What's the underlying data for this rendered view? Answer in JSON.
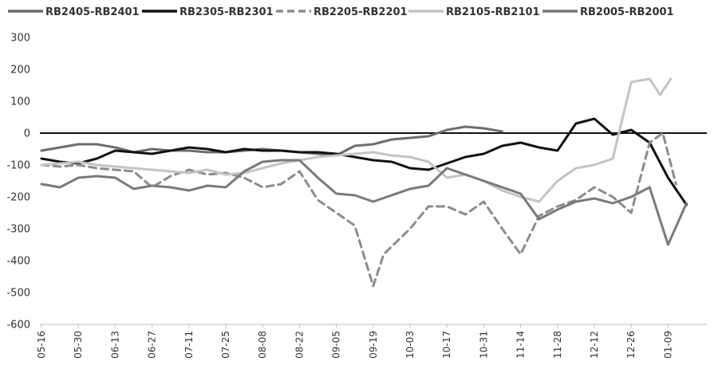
{
  "chart_data": {
    "type": "line",
    "title": "",
    "xlabel": "",
    "ylabel": "",
    "ylim": [
      -600,
      300
    ],
    "y_ticks": [
      300,
      200,
      100,
      0,
      -100,
      -200,
      -300,
      -400,
      -500,
      -600
    ],
    "x_tick_labels": [
      "05-16",
      "05-30",
      "06-13",
      "06-27",
      "07-11",
      "07-25",
      "08-08",
      "08-22",
      "09-05",
      "09-19",
      "10-03",
      "10-17",
      "10-31",
      "11-14",
      "11-28",
      "12-12",
      "12-26",
      "01-09"
    ],
    "grid": false,
    "zero_line": true,
    "legend_position": "top",
    "series": [
      {
        "name": "RB2405-RB2401",
        "color": "#6d6d6d",
        "style": "solid",
        "x": [
          "05-16",
          "05-23",
          "05-30",
          "06-06",
          "06-13",
          "06-20",
          "06-27",
          "07-04",
          "07-11",
          "07-18",
          "07-25",
          "08-01",
          "08-08",
          "08-15",
          "08-22",
          "08-29",
          "09-05",
          "09-12",
          "09-19",
          "09-26",
          "10-03",
          "10-10",
          "10-17",
          "10-24",
          "10-31",
          "11-07"
        ],
        "values": [
          -55,
          -45,
          -35,
          -35,
          -45,
          -60,
          -50,
          -55,
          -55,
          -60,
          -60,
          -55,
          -50,
          -55,
          -60,
          -65,
          -70,
          -40,
          -35,
          -20,
          -15,
          -10,
          10,
          20,
          15,
          5
        ]
      },
      {
        "name": "RB2305-RB2301",
        "color": "#111111",
        "style": "solid",
        "x": [
          "05-16",
          "05-23",
          "05-30",
          "06-06",
          "06-13",
          "06-20",
          "06-27",
          "07-04",
          "07-11",
          "07-18",
          "07-25",
          "08-01",
          "08-08",
          "08-15",
          "08-22",
          "08-29",
          "09-05",
          "09-12",
          "09-19",
          "09-26",
          "10-03",
          "10-10",
          "10-17",
          "10-24",
          "10-31",
          "11-07",
          "11-14",
          "11-21",
          "11-28",
          "12-05",
          "12-12",
          "12-19",
          "12-26",
          "01-02",
          "01-09",
          "01-16"
        ],
        "values": [
          -80,
          -90,
          -95,
          -80,
          -55,
          -60,
          -65,
          -55,
          -45,
          -50,
          -60,
          -50,
          -55,
          -55,
          -60,
          -60,
          -65,
          -75,
          -85,
          -90,
          -110,
          -115,
          -95,
          -75,
          -65,
          -40,
          -30,
          -45,
          -55,
          30,
          45,
          -5,
          10,
          -30,
          -140,
          -225
        ]
      },
      {
        "name": "RB2205-RB2201",
        "color": "#8c8c8c",
        "style": "dashed",
        "x": [
          "05-16",
          "05-23",
          "05-30",
          "06-06",
          "06-13",
          "06-20",
          "06-27",
          "07-04",
          "07-11",
          "07-18",
          "07-25",
          "08-01",
          "08-08",
          "08-15",
          "08-22",
          "08-29",
          "09-05",
          "09-12",
          "09-19",
          "09-23",
          "10-03",
          "10-10",
          "10-17",
          "10-24",
          "10-31",
          "11-07",
          "11-14",
          "11-21",
          "11-28",
          "12-05",
          "12-12",
          "12-19",
          "12-26",
          "01-02",
          "01-07",
          "01-12"
        ],
        "values": [
          -100,
          -105,
          -100,
          -110,
          -115,
          -120,
          -170,
          -135,
          -115,
          -130,
          -125,
          -140,
          -170,
          -160,
          -120,
          -210,
          -250,
          -290,
          -480,
          -380,
          -300,
          -230,
          -230,
          -255,
          -215,
          -300,
          -380,
          -260,
          -230,
          -210,
          -170,
          -200,
          -250,
          -30,
          0,
          -160
        ]
      },
      {
        "name": "RB2105-RB2101",
        "color": "#c4c4c4",
        "style": "solid",
        "x": [
          "05-16",
          "05-23",
          "05-30",
          "06-06",
          "06-13",
          "06-20",
          "06-27",
          "07-04",
          "07-11",
          "07-18",
          "07-25",
          "08-01",
          "08-08",
          "08-15",
          "08-22",
          "08-29",
          "09-05",
          "09-12",
          "09-19",
          "09-26",
          "10-03",
          "10-10",
          "10-17",
          "10-24",
          "10-31",
          "11-07",
          "11-14",
          "11-21",
          "11-28",
          "12-05",
          "12-12",
          "12-19",
          "12-26",
          "01-02",
          "01-06",
          "01-10"
        ],
        "values": [
          -100,
          -95,
          -90,
          -100,
          -105,
          -110,
          -115,
          -120,
          -125,
          -115,
          -130,
          -125,
          -110,
          -95,
          -85,
          -75,
          -70,
          -65,
          -60,
          -70,
          -75,
          -90,
          -140,
          -130,
          -150,
          -180,
          -200,
          -215,
          -150,
          -110,
          -100,
          -80,
          160,
          170,
          120,
          170
        ]
      },
      {
        "name": "RB2005-RB2001",
        "color": "#7a7a7a",
        "style": "solid",
        "x": [
          "05-16",
          "05-23",
          "05-30",
          "06-06",
          "06-13",
          "06-20",
          "06-27",
          "07-04",
          "07-11",
          "07-18",
          "07-25",
          "08-01",
          "08-08",
          "08-15",
          "08-22",
          "08-29",
          "09-05",
          "09-12",
          "09-19",
          "09-26",
          "10-03",
          "10-10",
          "10-17",
          "10-24",
          "10-31",
          "11-07",
          "11-14",
          "11-21",
          "11-28",
          "12-05",
          "12-12",
          "12-19",
          "12-26",
          "01-02",
          "01-09",
          "01-16"
        ],
        "values": [
          -160,
          -170,
          -140,
          -135,
          -140,
          -175,
          -165,
          -170,
          -180,
          -165,
          -170,
          -120,
          -90,
          -85,
          -85,
          -140,
          -190,
          -195,
          -215,
          -195,
          -175,
          -165,
          -110,
          -130,
          -150,
          -170,
          -190,
          -270,
          -240,
          -215,
          -205,
          -220,
          -200,
          -170,
          -350,
          -220
        ]
      }
    ]
  }
}
